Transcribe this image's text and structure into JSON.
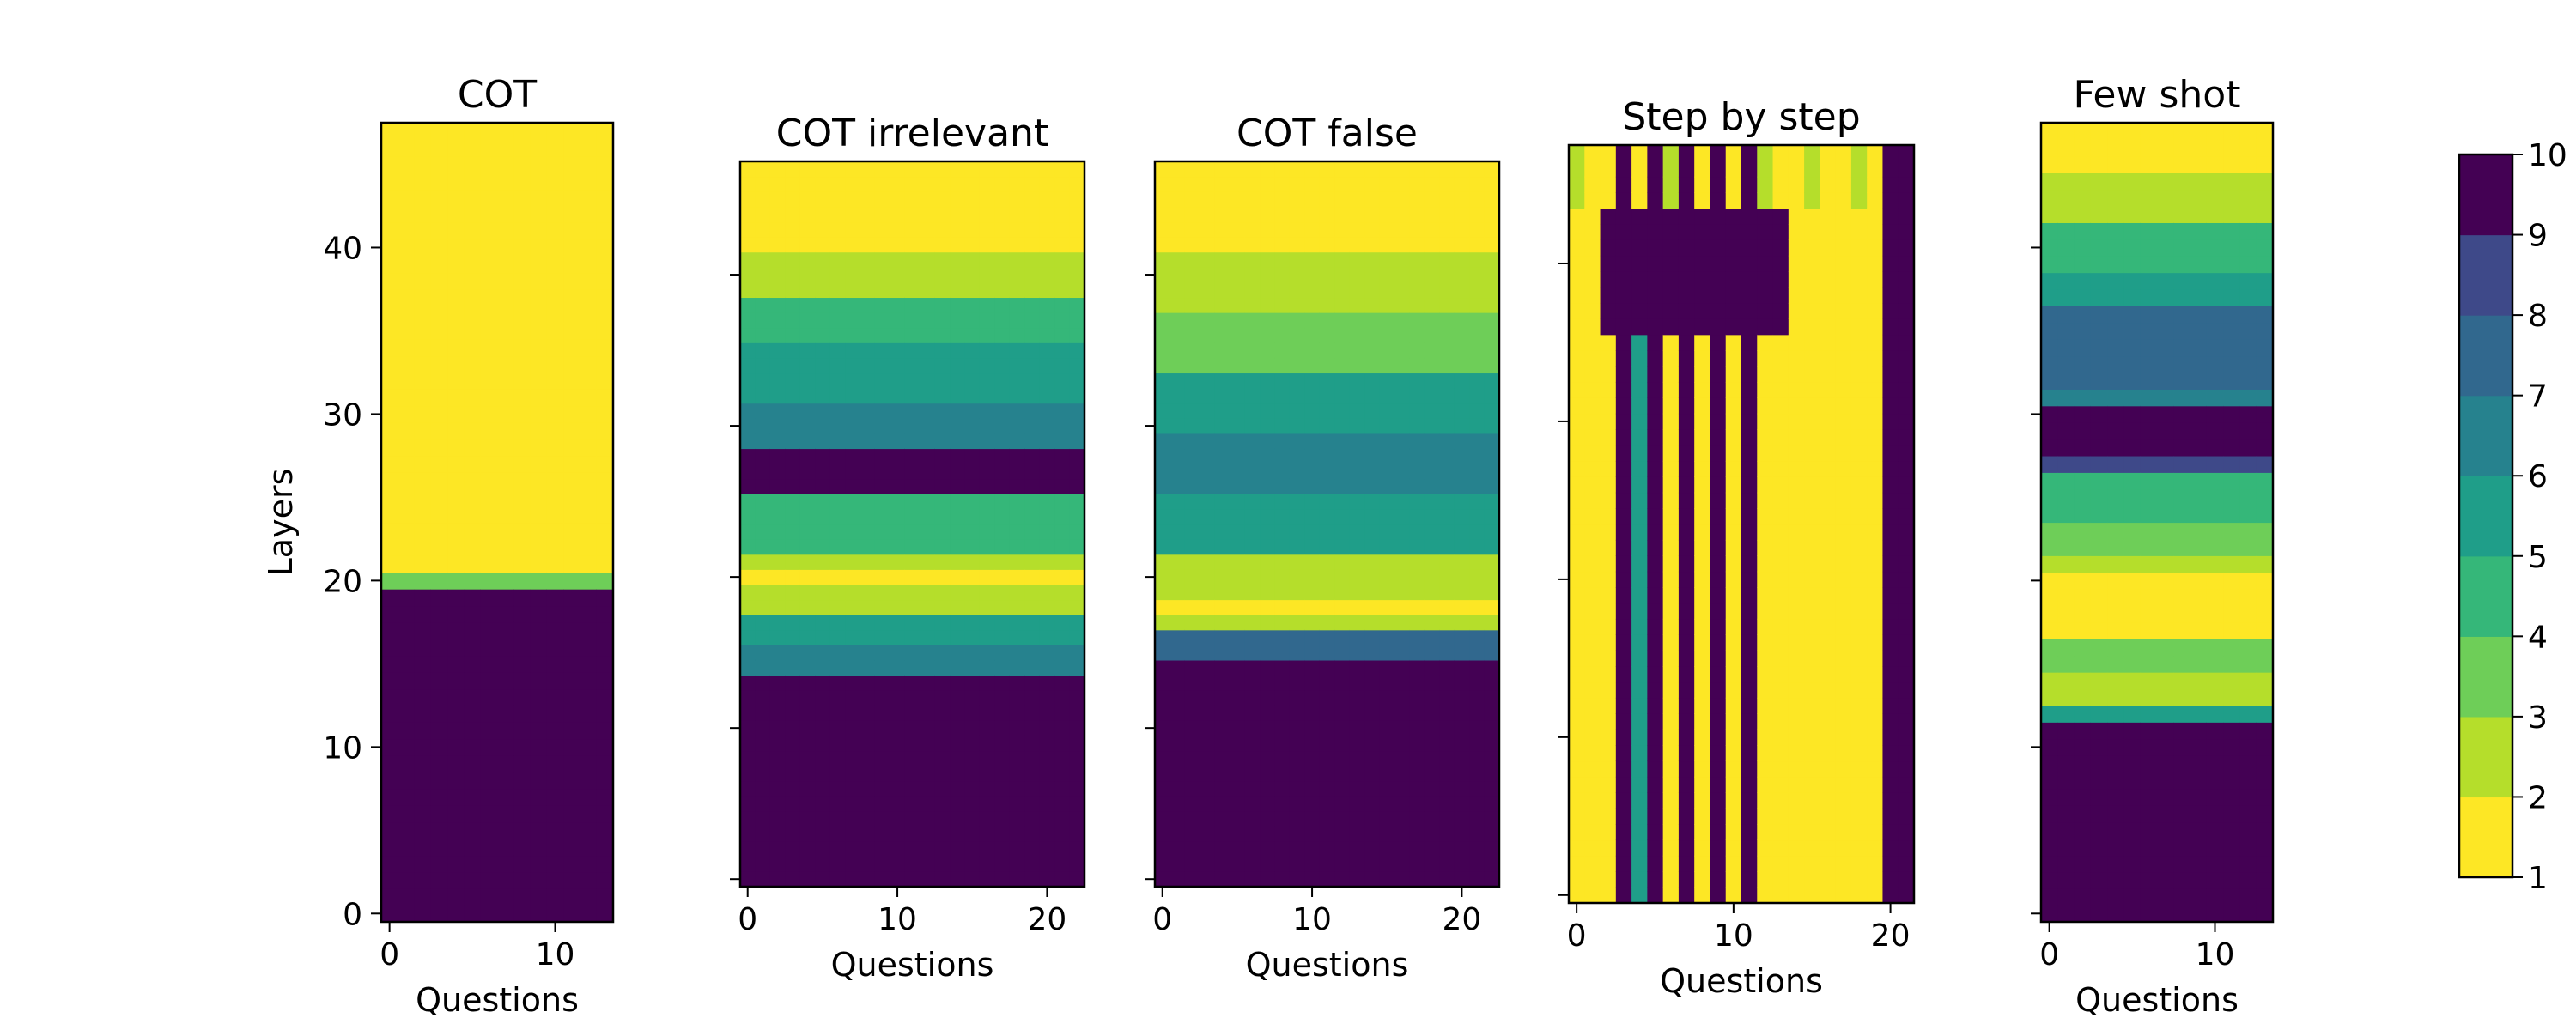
{
  "chart_data": {
    "type": "heatmap",
    "ylabel": "Layers",
    "xlabel": "Questions",
    "colormap": "viridis_r",
    "colorbar": {
      "min": 1,
      "max": 10,
      "ticks": [
        1,
        2,
        3,
        4,
        5,
        6,
        7,
        8,
        9,
        10
      ],
      "bins": 9
    },
    "panels": [
      {
        "title": "COT",
        "n_questions": 14,
        "n_layers": 48,
        "xticks": [
          0,
          10
        ],
        "yticks": [
          0,
          10,
          20,
          30,
          40
        ],
        "show_ytick_labels": true,
        "layer_values": [
          [
            0,
            19,
            10
          ],
          [
            20,
            20,
            3
          ],
          [
            21,
            44,
            1
          ],
          [
            45,
            45,
            1.5
          ],
          [
            46,
            47,
            1
          ]
        ]
      },
      {
        "title": "COT irrelevant",
        "n_questions": 23,
        "n_layers": 48,
        "xticks": [
          0,
          10,
          20
        ],
        "yticks": [
          0,
          10,
          20,
          30,
          40
        ],
        "show_ytick_labels": false,
        "layer_values": [
          [
            0,
            13,
            10
          ],
          [
            14,
            15,
            6
          ],
          [
            16,
            17,
            5
          ],
          [
            18,
            19,
            2
          ],
          [
            20,
            20,
            1
          ],
          [
            21,
            21,
            2
          ],
          [
            22,
            25,
            4
          ],
          [
            26,
            28,
            10
          ],
          [
            29,
            31,
            6
          ],
          [
            32,
            35,
            5
          ],
          [
            36,
            38,
            4
          ],
          [
            39,
            41,
            2
          ],
          [
            42,
            45,
            1
          ],
          [
            46,
            47,
            1
          ]
        ]
      },
      {
        "title": "COT false",
        "n_questions": 23,
        "n_layers": 48,
        "xticks": [
          0,
          10,
          20
        ],
        "yticks": [
          0,
          10,
          20,
          30,
          40
        ],
        "show_ytick_labels": false,
        "layer_values": [
          [
            0,
            14,
            10
          ],
          [
            15,
            16,
            7
          ],
          [
            17,
            17,
            2
          ],
          [
            18,
            18,
            1
          ],
          [
            19,
            21,
            2
          ],
          [
            22,
            25,
            5
          ],
          [
            26,
            29,
            6
          ],
          [
            30,
            33,
            5
          ],
          [
            34,
            37,
            3
          ],
          [
            38,
            41,
            2
          ],
          [
            42,
            45,
            1
          ],
          [
            46,
            47,
            1
          ]
        ]
      },
      {
        "title": "Step by step",
        "n_questions": 22,
        "n_layers": 48,
        "xticks": [
          0,
          10,
          20
        ],
        "yticks": [
          0,
          10,
          20,
          30,
          40
        ],
        "show_ytick_labels": false,
        "columns": [
          {
            "from": 0,
            "to": 2,
            "value": 1
          },
          {
            "from": 3,
            "to": 3,
            "value": 10
          },
          {
            "from": 4,
            "to": 4,
            "value": 5
          },
          {
            "from": 5,
            "to": 5,
            "value": 10
          },
          {
            "from": 6,
            "to": 6,
            "value": 1
          },
          {
            "from": 7,
            "to": 7,
            "value": 10
          },
          {
            "from": 8,
            "to": 8,
            "value": 1
          },
          {
            "from": 9,
            "to": 9,
            "value": 10
          },
          {
            "from": 10,
            "to": 10,
            "value": 1
          },
          {
            "from": 11,
            "to": 11,
            "value": 10
          },
          {
            "from": 12,
            "to": 19,
            "value": 1
          },
          {
            "from": 20,
            "to": 21,
            "value": 10
          }
        ],
        "top_block": {
          "layer_from": 36,
          "layer_to": 43,
          "question_from": 2,
          "question_to": 13,
          "value": 10
        }
      },
      {
        "title": "Few shot",
        "n_questions": 14,
        "n_layers": 48,
        "xticks": [
          0,
          10
        ],
        "yticks": [
          0,
          10,
          20,
          30,
          40
        ],
        "show_ytick_labels": false,
        "layer_values": [
          [
            0,
            11,
            10
          ],
          [
            12,
            12,
            5
          ],
          [
            13,
            14,
            2
          ],
          [
            15,
            16,
            3
          ],
          [
            17,
            20,
            1
          ],
          [
            21,
            21,
            2
          ],
          [
            22,
            23,
            3
          ],
          [
            24,
            26,
            4
          ],
          [
            27,
            27,
            8
          ],
          [
            28,
            30,
            10
          ],
          [
            31,
            31,
            6
          ],
          [
            32,
            36,
            7
          ],
          [
            37,
            38,
            5
          ],
          [
            39,
            41,
            4
          ],
          [
            42,
            44,
            2
          ],
          [
            45,
            47,
            1
          ]
        ]
      }
    ]
  }
}
